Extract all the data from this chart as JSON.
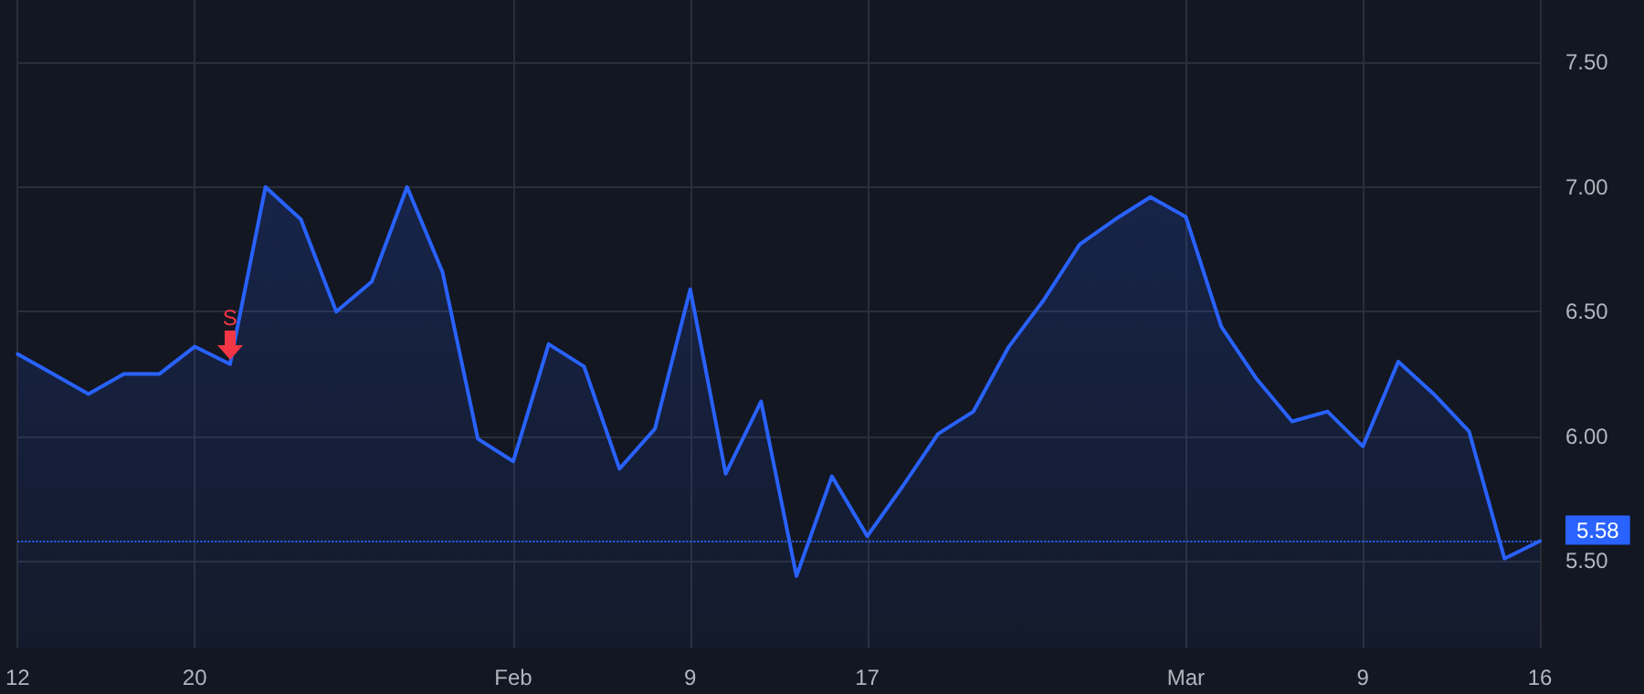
{
  "chart_data": {
    "type": "area",
    "categories": [
      "12",
      null,
      null,
      null,
      null,
      "20",
      null,
      null,
      null,
      null,
      null,
      null,
      null,
      null,
      "Feb",
      null,
      null,
      null,
      null,
      "9",
      null,
      null,
      null,
      null,
      "17",
      null,
      null,
      null,
      null,
      null,
      null,
      null,
      null,
      "Mar",
      null,
      null,
      null,
      null,
      "9",
      null,
      null,
      null,
      null,
      "16"
    ],
    "series": [
      {
        "color": "#2962ff",
        "values": [
          6.33,
          6.25,
          6.17,
          6.25,
          6.25,
          6.36,
          6.29,
          7.0,
          6.87,
          6.5,
          6.62,
          7.0,
          6.66,
          5.99,
          5.9,
          6.37,
          6.28,
          5.87,
          6.03,
          6.59,
          5.85,
          6.14,
          5.44,
          5.84,
          5.6,
          5.8,
          6.01,
          6.1,
          6.36,
          6.55,
          6.77,
          6.87,
          6.96,
          6.88,
          6.44,
          6.23,
          6.06,
          6.1,
          5.96,
          6.3,
          6.17,
          6.02,
          5.51,
          5.58
        ]
      }
    ],
    "ylim": [
      5.15,
      7.75
    ],
    "yticks": [
      {
        "value": 5.5,
        "label": "5.50"
      },
      {
        "value": 6,
        "label": "6.00"
      },
      {
        "value": 6.5,
        "label": "6.50"
      },
      {
        "value": 7,
        "label": "7.00"
      },
      {
        "value": 7.5,
        "label": "7.50"
      }
    ],
    "ref_lines": [
      {
        "axis": "y",
        "value": 5.58,
        "label": "5.58",
        "color": "#2962ff",
        "line_style": "dotted"
      }
    ],
    "annotations": [
      {
        "text": "S",
        "y": 6.29
      }
    ],
    "grid": true,
    "marker": "none",
    "line_style": "solid"
  }
}
